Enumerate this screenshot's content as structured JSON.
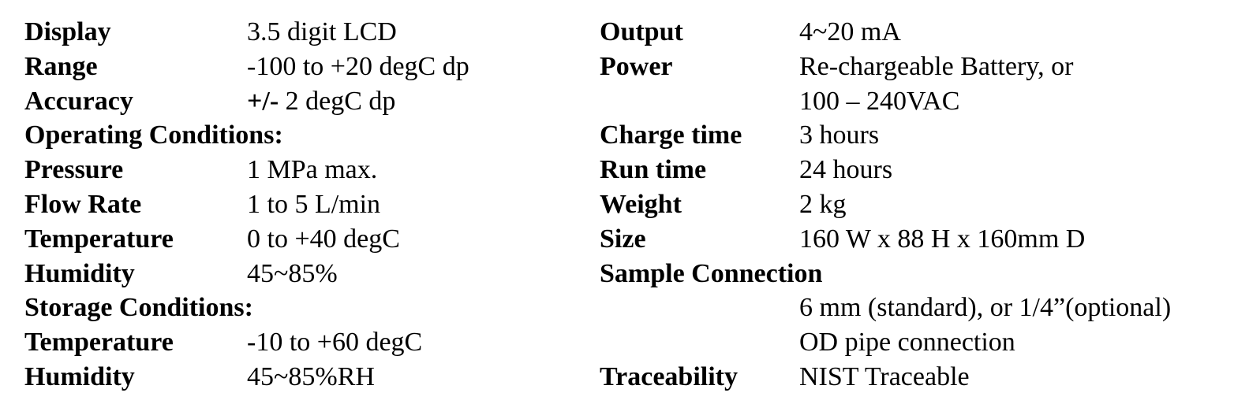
{
  "left": [
    {
      "label": "Display",
      "value": "3.5 digit LCD"
    },
    {
      "label": "Range",
      "value": "-100 to +20 degC dp"
    },
    {
      "label": "Accuracy",
      "value_bold": "+/-",
      "value": " 2 degC dp"
    },
    {
      "label": "Operating Conditions:",
      "value": ""
    },
    {
      "label": "Pressure",
      "value": "1 MPa max."
    },
    {
      "label": "Flow Rate",
      "value": "1 to 5 L/min"
    },
    {
      "label": "Temperature",
      "value": "0 to +40 degC"
    },
    {
      "label": "Humidity",
      "value": "45~85%"
    },
    {
      "label": "Storage Conditions:",
      "value": ""
    },
    {
      "label": "Temperature",
      "value": "-10 to +60 degC"
    },
    {
      "label": "Humidity",
      "value": "45~85%RH"
    }
  ],
  "right": [
    {
      "label": "Output",
      "value": "4~20 mA"
    },
    {
      "label": "Power",
      "value": "Re-chargeable Battery, or"
    },
    {
      "label": "",
      "value": "100 – 240VAC"
    },
    {
      "label": "Charge time",
      "value": "3 hours"
    },
    {
      "label": "Run time",
      "value": "24 hours"
    },
    {
      "label": "Weight",
      "value": "2 kg"
    },
    {
      "label": "Size",
      "value": "160 W x 88 H x 160mm D"
    },
    {
      "label": "Sample Connection",
      "value": ""
    },
    {
      "label": "",
      "value": "6 mm (standard), or 1/4”(optional)"
    },
    {
      "label": "",
      "value": "OD pipe connection"
    },
    {
      "label": "Traceability",
      "value": "NIST Traceable"
    }
  ]
}
